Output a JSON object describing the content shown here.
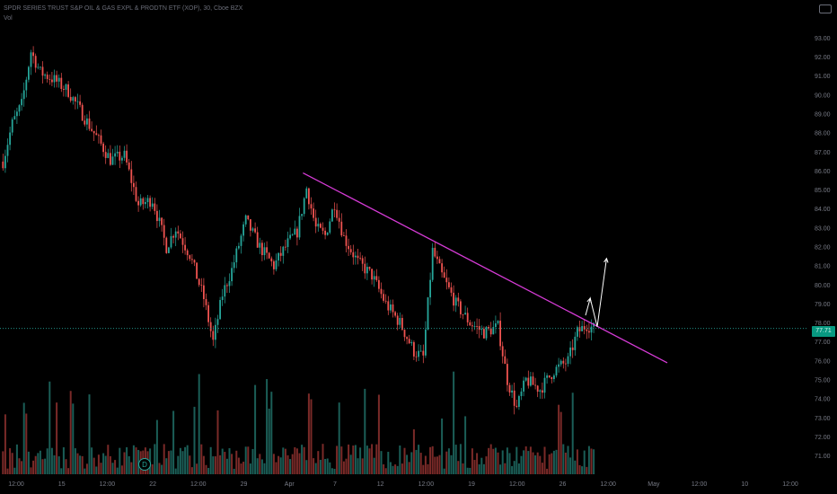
{
  "header": {
    "title": "SPDR SERIES TRUST S&P OIL & GAS EXPL & PRODTN ETF (XOP), 30, Cboe BZX",
    "volume_label": "Vol"
  },
  "icons": {
    "camera": "camera-icon"
  },
  "event_marker": "D",
  "current_price": "77.71",
  "colors": {
    "background": "#000000",
    "up": "#26a69a",
    "down": "#ef5350",
    "volume_up": "#1b5e57",
    "volume_down": "#7a2a28",
    "trendline": "#d63bd6",
    "projection": "#ffffff",
    "price_line": "#26a69a",
    "axis_text": "#787b86"
  },
  "chart_data": {
    "type": "candlestick",
    "title": "SPDR SERIES TRUST S&P OIL & GAS EXPL & PRODTN ETF (XOP), 30, Cboe BZX",
    "x_tick_labels": [
      "12:00",
      "15",
      "12:00",
      "22",
      "12:00",
      "29",
      "Apr",
      "7",
      "12",
      "12:00",
      "19",
      "12:00",
      "26",
      "12:00",
      "May",
      "12:00",
      "10",
      "12:00"
    ],
    "y_tick_labels": [
      "93.00",
      "92.00",
      "91.00",
      "90.00",
      "89.00",
      "88.00",
      "87.00",
      "86.00",
      "85.00",
      "84.00",
      "83.00",
      "82.00",
      "81.00",
      "80.00",
      "79.00",
      "78.00",
      "77.00",
      "76.00",
      "75.00",
      "74.00",
      "73.00",
      "72.00",
      "71.00"
    ],
    "ylim": [
      70.6,
      93.4
    ],
    "last_price": 77.71,
    "price_path": [
      [
        0,
        86.5
      ],
      [
        4,
        88.5
      ],
      [
        8,
        89.5
      ],
      [
        12,
        92.3
      ],
      [
        16,
        91.2
      ],
      [
        22,
        90.8
      ],
      [
        28,
        90.2
      ],
      [
        34,
        89.0
      ],
      [
        40,
        87.8
      ],
      [
        46,
        86.6
      ],
      [
        52,
        86.8
      ],
      [
        58,
        84.2
      ],
      [
        64,
        84.5
      ],
      [
        70,
        82.0
      ],
      [
        74,
        83.0
      ],
      [
        80,
        81.6
      ],
      [
        86,
        79.3
      ],
      [
        90,
        77.0
      ],
      [
        94,
        79.5
      ],
      [
        98,
        80.8
      ],
      [
        104,
        83.4
      ],
      [
        110,
        82.0
      ],
      [
        116,
        81.0
      ],
      [
        122,
        82.2
      ],
      [
        126,
        82.8
      ],
      [
        130,
        85.1
      ],
      [
        134,
        83.0
      ],
      [
        138,
        82.6
      ],
      [
        142,
        84.3
      ],
      [
        146,
        82.5
      ],
      [
        152,
        81.2
      ],
      [
        158,
        80.5
      ],
      [
        164,
        79.0
      ],
      [
        170,
        78.0
      ],
      [
        176,
        76.5
      ],
      [
        180,
        76.2
      ],
      [
        184,
        81.8
      ],
      [
        188,
        80.5
      ],
      [
        194,
        79.0
      ],
      [
        200,
        78.0
      ],
      [
        206,
        77.5
      ],
      [
        212,
        77.8
      ],
      [
        216,
        75.0
      ],
      [
        220,
        73.5
      ],
      [
        224,
        75.0
      ],
      [
        230,
        74.5
      ],
      [
        236,
        75.5
      ],
      [
        242,
        76.0
      ],
      [
        246,
        77.5
      ],
      [
        250,
        77.9
      ],
      [
        253,
        77.71
      ]
    ],
    "trendline": {
      "start": [
        129,
        85.9
      ],
      "end": [
        285,
        75.9
      ]
    },
    "projection_path": [
      [
        250,
        78.4
      ],
      [
        252,
        79.3
      ],
      [
        255,
        77.8
      ],
      [
        259,
        81.4
      ]
    ],
    "volume_max": 1.0,
    "volume_bars": 330
  }
}
